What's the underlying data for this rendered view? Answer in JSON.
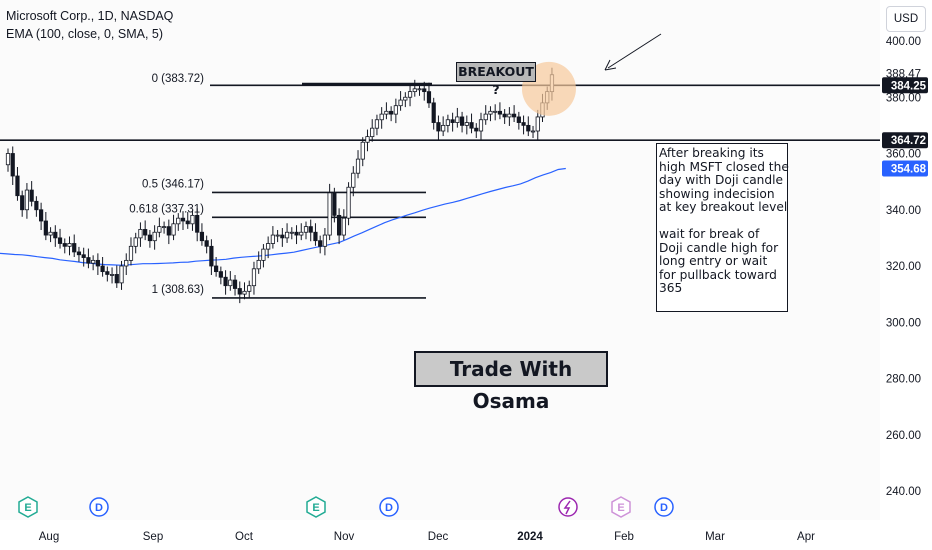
{
  "header": {
    "title": "Microsoft Corp., 1D, NASDAQ",
    "indicator": "EMA (100, close, 0, SMA, 5)"
  },
  "currency_button": "USD",
  "annotations": {
    "breakout_label": "BREAKOUT ?",
    "watermark": "Trade With Osama",
    "note_lines": [
      "After breaking its",
      "high MSFT closed the",
      "day with Doji candle",
      "showing indecision",
      "at key breakout level",
      "",
      "wait for break of",
      "Doji candle high for",
      "long entry or wait",
      "for pullback toward",
      "365"
    ]
  },
  "colors": {
    "up": "#26a69a",
    "down": "#131722",
    "ema": "#2962ff",
    "price_label": "#131722",
    "ema_label": "#2962ff",
    "event_earnings": "#22ab94",
    "event_dividend": "#2962ff",
    "event_split": "#9c27b0"
  },
  "chart_data": {
    "type": "candlestick",
    "ylim": [
      232,
      410
    ],
    "y_ticks": [
      "400.00",
      "388.47",
      "380.00",
      "360.00",
      "340.00",
      "320.00",
      "300.00",
      "280.00",
      "260.00",
      "240.00"
    ],
    "x_ticks": [
      "Aug",
      "Sep",
      "Oct",
      "Nov",
      "Dec",
      "2024",
      "Feb",
      "Mar",
      "Apr"
    ],
    "horizontal_levels": [
      {
        "name": "resistance",
        "value": 384.25,
        "label": "384.25"
      },
      {
        "name": "support",
        "value": 364.72,
        "label": "364.72"
      }
    ],
    "ema_label": {
      "value": 354.68,
      "label": "354.68"
    },
    "last_price_marker": {
      "value": 388.47,
      "label": "388.47"
    },
    "fibonacci": [
      {
        "ratio": "0",
        "price": 383.72,
        "label": "0 (383.72)"
      },
      {
        "ratio": "0.5",
        "price": 346.17,
        "label": "0.5 (346.17)"
      },
      {
        "ratio": "0.618",
        "price": 337.31,
        "label": "0.618 (337.31)"
      },
      {
        "ratio": "1",
        "price": 308.63,
        "label": "1 (308.63)"
      }
    ],
    "closes": [
      360,
      352,
      345,
      340,
      347,
      343,
      340,
      336,
      331,
      332,
      330,
      328,
      327,
      328,
      325,
      324,
      323,
      321,
      322,
      320,
      318,
      317,
      317,
      314,
      320,
      322,
      327,
      330,
      333,
      331,
      329,
      332,
      334,
      334,
      331,
      335,
      337,
      336,
      335,
      338,
      332,
      329,
      327,
      320,
      318,
      316,
      313,
      315,
      312,
      310,
      311,
      313,
      319,
      322,
      326,
      328,
      331,
      331,
      330,
      332,
      332,
      331,
      332,
      334,
      332,
      329,
      327,
      331,
      346,
      338,
      331,
      337,
      348,
      353,
      358,
      364,
      366,
      369,
      372,
      374,
      375,
      374,
      377,
      379,
      380,
      382,
      383,
      383,
      382,
      378,
      371,
      368,
      370,
      372,
      371,
      373,
      370,
      371,
      369,
      368,
      372,
      374,
      375,
      375,
      374,
      373,
      374,
      373,
      371,
      370,
      368,
      368,
      373,
      378,
      382,
      388
    ],
    "ema": [
      324.5,
      324.3,
      324.1,
      324.0,
      323.7,
      323.3,
      323.0,
      322.7,
      322.2,
      321.9,
      321.6,
      321.2,
      321.0,
      320.7,
      320.5,
      320.4,
      320.3,
      320.4,
      320.6,
      320.8,
      320.8,
      320.9,
      321.0,
      321.1,
      321.3,
      321.4,
      321.7,
      321.9,
      322.1,
      322.2,
      322.4,
      322.8,
      323.1,
      323.3,
      323.5,
      323.7,
      324.0,
      324.3,
      324.6,
      324.9,
      325.5,
      326.1,
      326.7,
      327.2,
      327.8,
      328.4,
      329.5,
      330.7,
      331.8,
      333.0,
      334.2,
      335.4,
      336.4,
      337.2,
      338.1,
      338.9,
      339.8,
      340.6,
      341.3,
      342.0,
      342.6,
      343.3,
      344.1,
      344.9,
      345.7,
      346.5,
      347.2,
      347.9,
      348.5,
      349.2,
      350.2,
      351.4,
      352.4,
      353.2,
      354.3,
      354.68
    ],
    "events": [
      {
        "type": "earnings",
        "letter": "E",
        "x_label": "Aug"
      },
      {
        "type": "dividend",
        "letter": "D",
        "x_label": "Aug"
      },
      {
        "type": "earnings",
        "letter": "E",
        "x_label": "Nov"
      },
      {
        "type": "dividend",
        "letter": "D",
        "x_label": "Nov"
      },
      {
        "type": "split",
        "letter": "",
        "x_label": "2024"
      },
      {
        "type": "earnings",
        "letter": "E",
        "x_label": "Feb"
      },
      {
        "type": "dividend",
        "letter": "D",
        "x_label": "Feb"
      }
    ]
  }
}
